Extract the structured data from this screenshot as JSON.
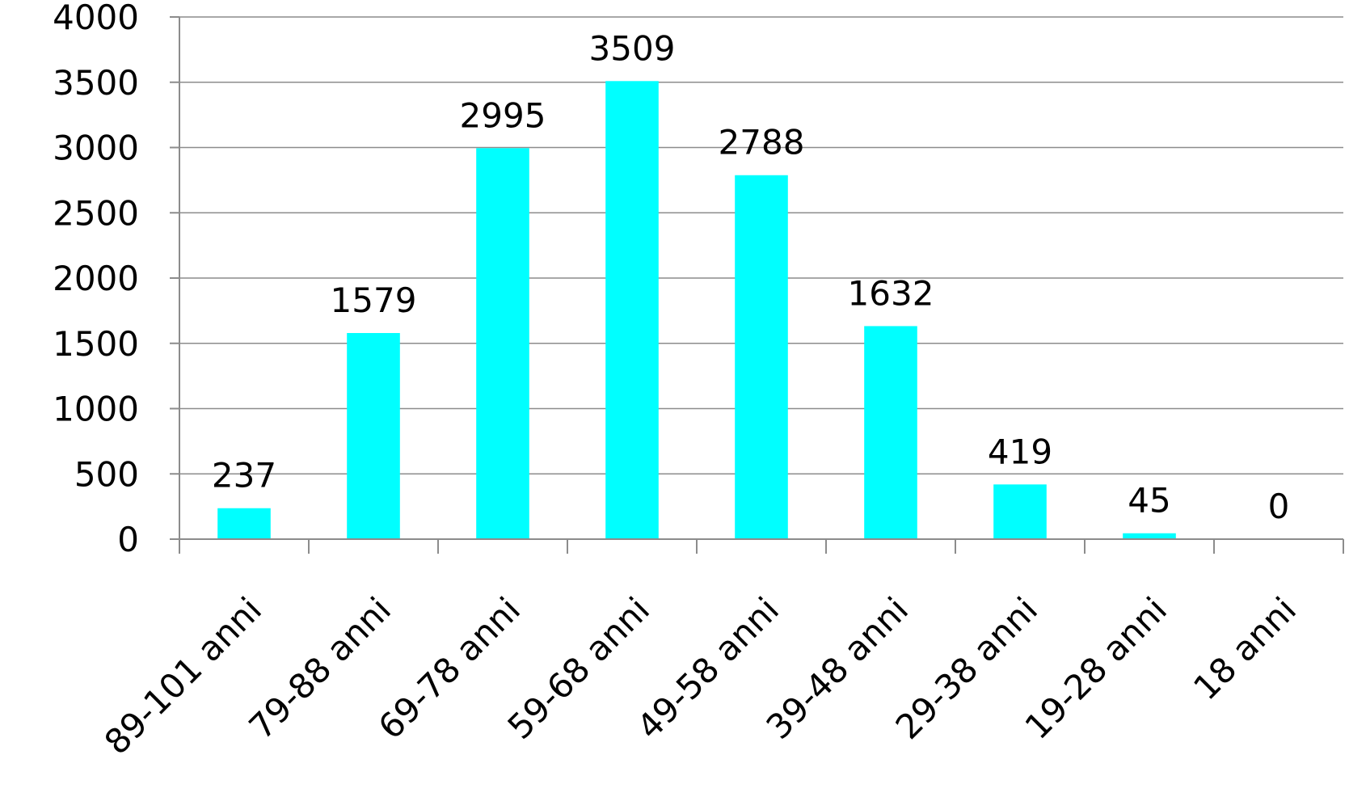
{
  "chart_data": {
    "type": "bar",
    "categories": [
      "89-101 anni",
      "79-88 anni",
      "69-78 anni",
      "59-68 anni",
      "49-58 anni",
      "39-48 anni",
      "29-38 anni",
      "19-28 anni",
      "18 anni"
    ],
    "values": [
      237,
      1579,
      2995,
      3509,
      2788,
      1632,
      419,
      45,
      0
    ],
    "data_labels": [
      "237",
      "1579",
      "2995",
      "3509",
      "2788",
      "1632",
      "419",
      "45",
      "0"
    ],
    "yticks": [
      0,
      500,
      1000,
      1500,
      2000,
      2500,
      3000,
      3500,
      4000
    ],
    "ytick_labels": [
      "0",
      "500",
      "1000",
      "1500",
      "2000",
      "2500",
      "3000",
      "3500",
      "4000"
    ],
    "ylim": [
      0,
      4000
    ],
    "title": "",
    "xlabel": "",
    "ylabel": "",
    "grid": true,
    "legend": "none",
    "bar_color": "#00ffff",
    "grid_color": "#8c8c8c",
    "text_color": "#000000"
  }
}
